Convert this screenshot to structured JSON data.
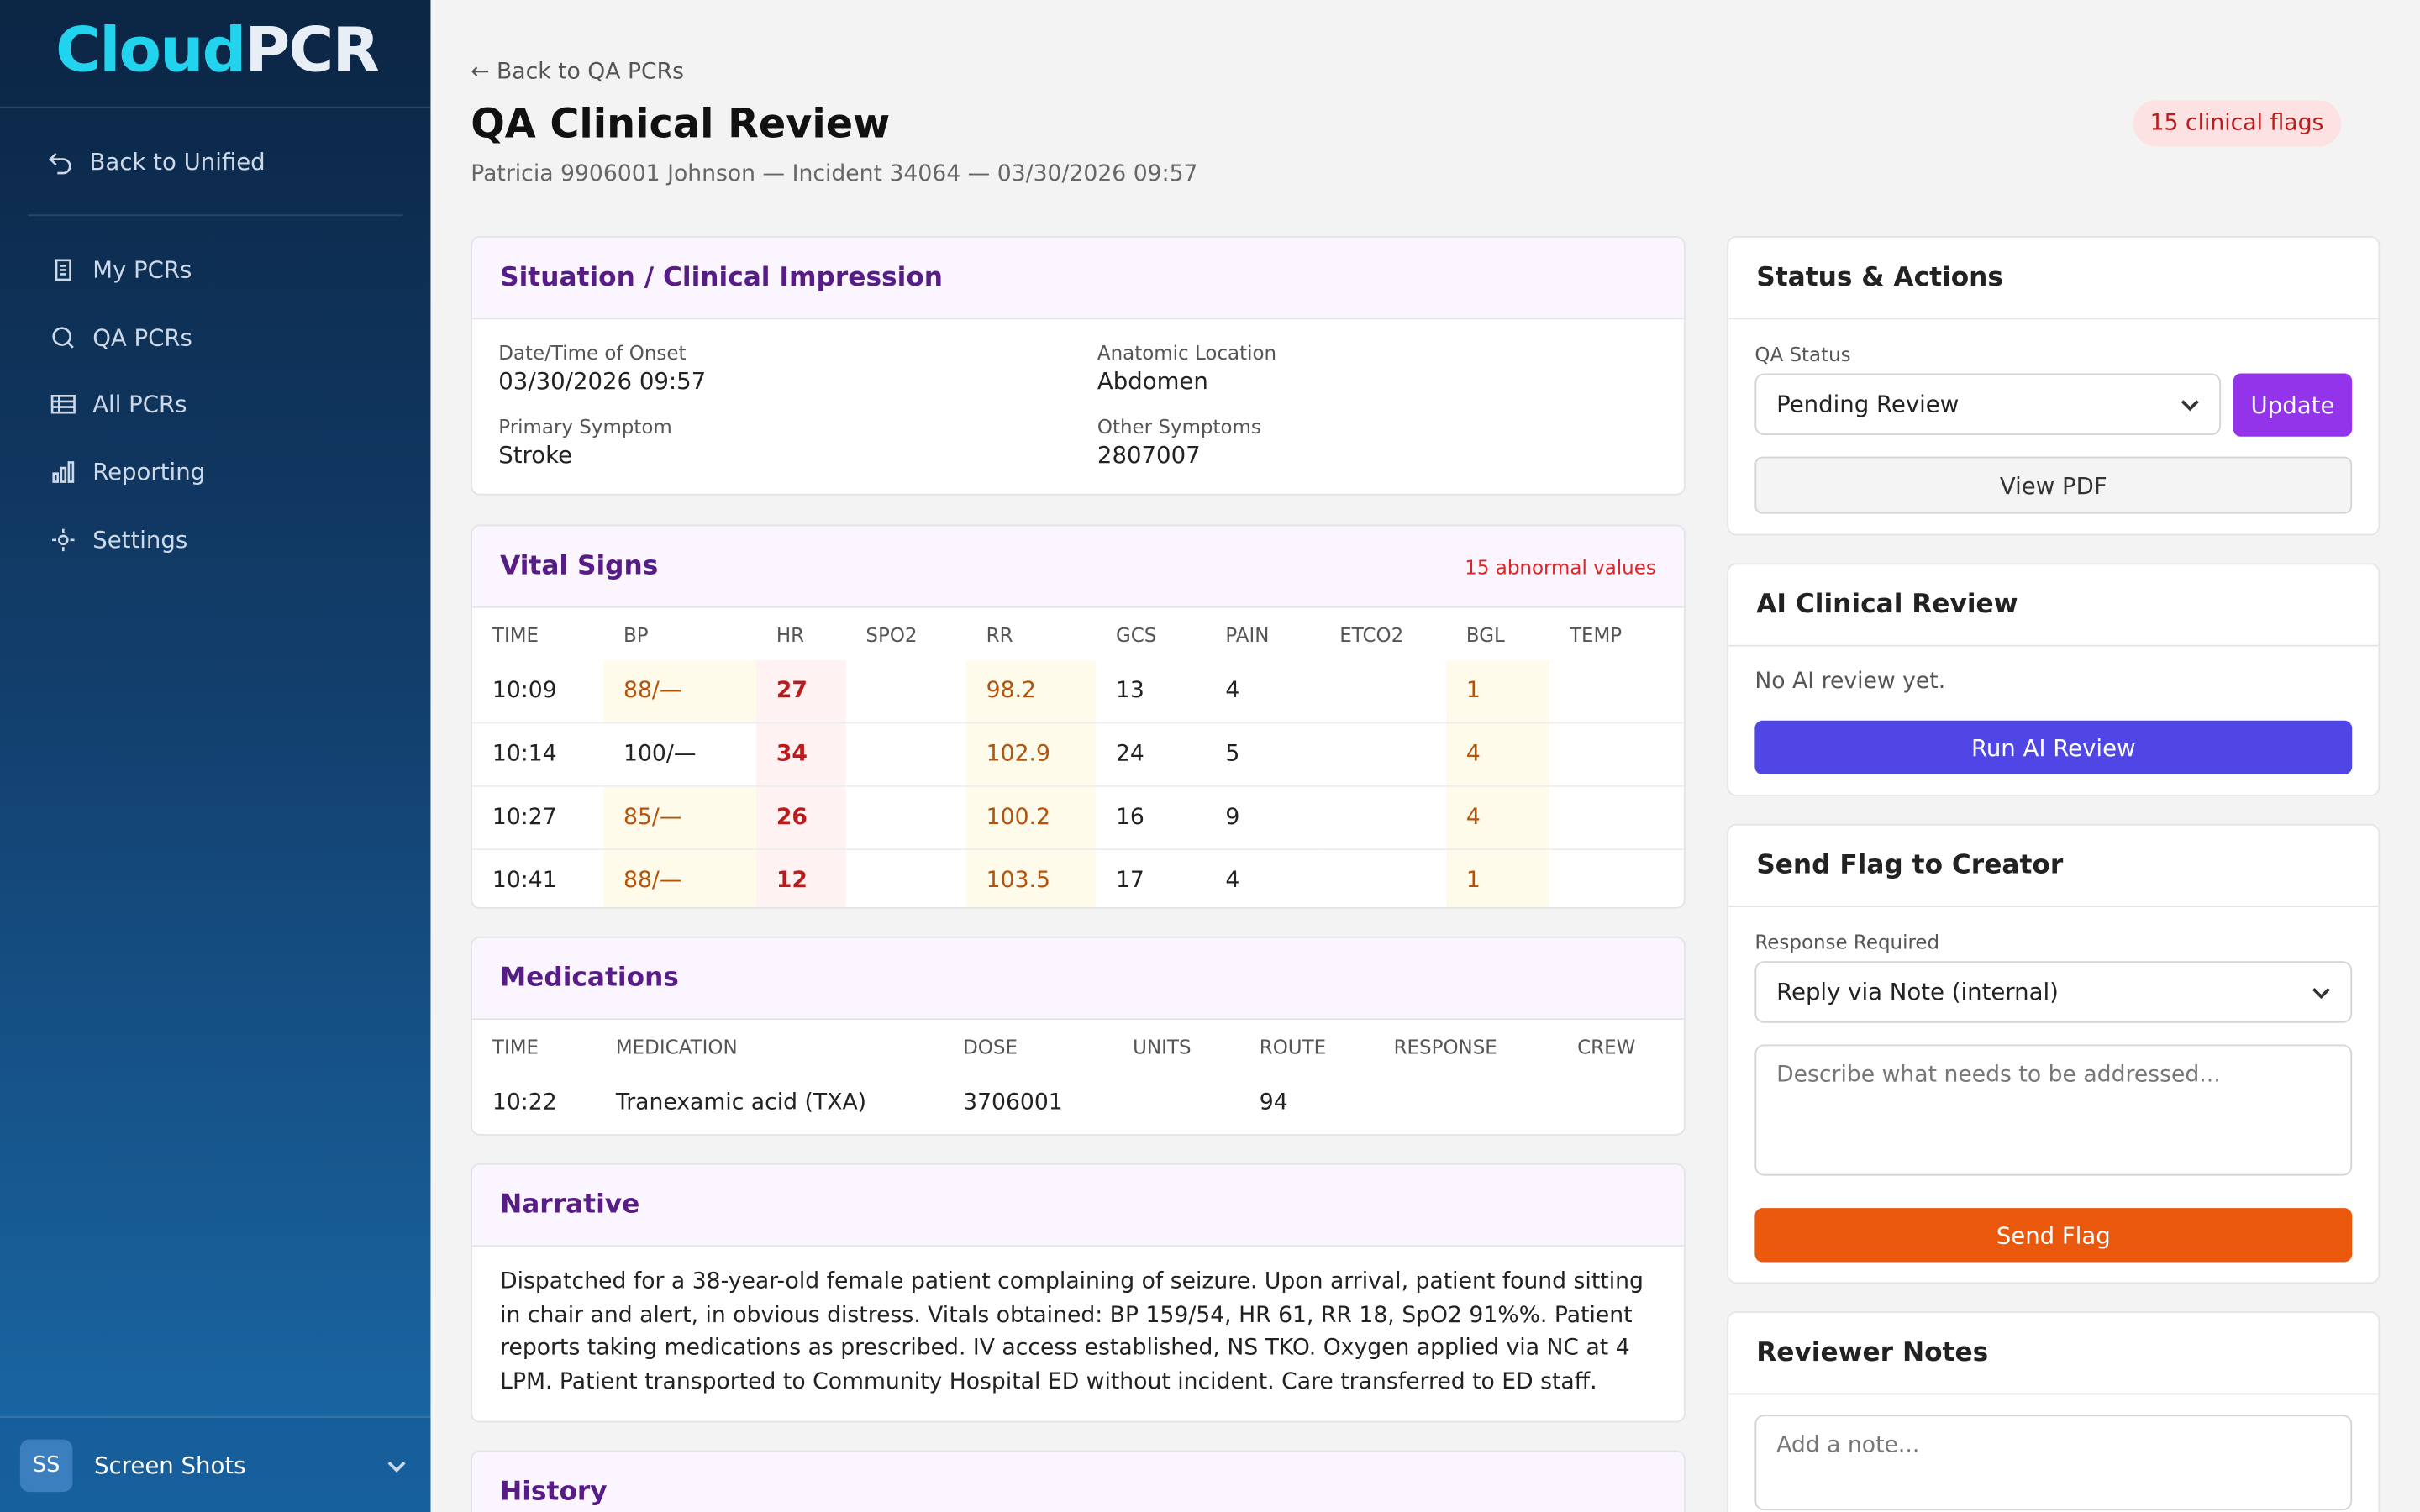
{
  "sidebar": {
    "logo": {
      "part1": "Cloud",
      "part2": "PCR"
    },
    "back": "Back to Unified",
    "nav": [
      "My PCRs",
      "QA PCRs",
      "All PCRs",
      "Reporting",
      "Settings"
    ],
    "user": {
      "initials": "SS",
      "name": "Screen Shots"
    }
  },
  "header": {
    "back": "← Back to QA PCRs",
    "title": "QA Clinical Review",
    "subtitle": "Patricia 9906001 Johnson — Incident 34064 — 03/30/2026 09:57",
    "badge": "15 clinical flags"
  },
  "situation": {
    "title": "Situation / Clinical Impression",
    "fields": [
      {
        "label": "Date/Time of Onset",
        "value": "03/30/2026 09:57"
      },
      {
        "label": "Anatomic Location",
        "value": "Abdomen"
      },
      {
        "label": "Primary Symptom",
        "value": "Stroke"
      },
      {
        "label": "Other Symptoms",
        "value": "2807007"
      }
    ]
  },
  "vitals": {
    "title": "Vital Signs",
    "note": "15 abnormal values",
    "columns": [
      "TIME",
      "BP",
      "HR",
      "SPO2",
      "RR",
      "GCS",
      "PAIN",
      "ETCO2",
      "BGL",
      "TEMP"
    ],
    "rows": [
      {
        "time": "10:09",
        "bp": "88/—",
        "hr": "27",
        "rr": "98.2",
        "gcs": "13",
        "pain": "4",
        "bgl": "1"
      },
      {
        "time": "10:14",
        "bp": "100/—",
        "hr": "34",
        "rr": "102.9",
        "gcs": "24",
        "pain": "5",
        "bgl": "4"
      },
      {
        "time": "10:27",
        "bp": "85/—",
        "hr": "26",
        "rr": "100.2",
        "gcs": "16",
        "pain": "9",
        "bgl": "4"
      },
      {
        "time": "10:41",
        "bp": "88/—",
        "hr": "12",
        "rr": "103.5",
        "gcs": "17",
        "pain": "4",
        "bgl": "1"
      }
    ]
  },
  "medications": {
    "title": "Medications",
    "columns": [
      "TIME",
      "MEDICATION",
      "DOSE",
      "UNITS",
      "ROUTE",
      "RESPONSE",
      "CREW"
    ],
    "rows": [
      {
        "time": "10:22",
        "medication": "Tranexamic acid (TXA)",
        "dose": "3706001",
        "route": "94"
      }
    ]
  },
  "narrative": {
    "title": "Narrative",
    "text": "Dispatched for a 38-year-old female patient complaining of seizure. Upon arrival, patient found sitting in chair and alert, in obvious distress. Vitals obtained: BP 159/54, HR 61, RR 18, SpO2 91%%. Patient reports taking medications as prescribed. IV access established, NS TKO. Oxygen applied via NC at 4 LPM. Patient transported to Community Hospital ED without incident. Care transferred to ED staff."
  },
  "history": {
    "title": "History"
  },
  "status": {
    "title": "Status & Actions",
    "label": "QA Status",
    "select": "Pending Review",
    "update": "Update",
    "pdf": "View PDF"
  },
  "ai": {
    "title": "AI Clinical Review",
    "empty": "No AI review yet.",
    "button": "Run AI Review"
  },
  "flag": {
    "title": "Send Flag to Creator",
    "label": "Response Required",
    "select": "Reply via Note (internal)",
    "placeholder": "Describe what needs to be addressed...",
    "button": "Send Flag"
  },
  "notes": {
    "title": "Reviewer Notes",
    "placeholder": "Add a note..."
  }
}
